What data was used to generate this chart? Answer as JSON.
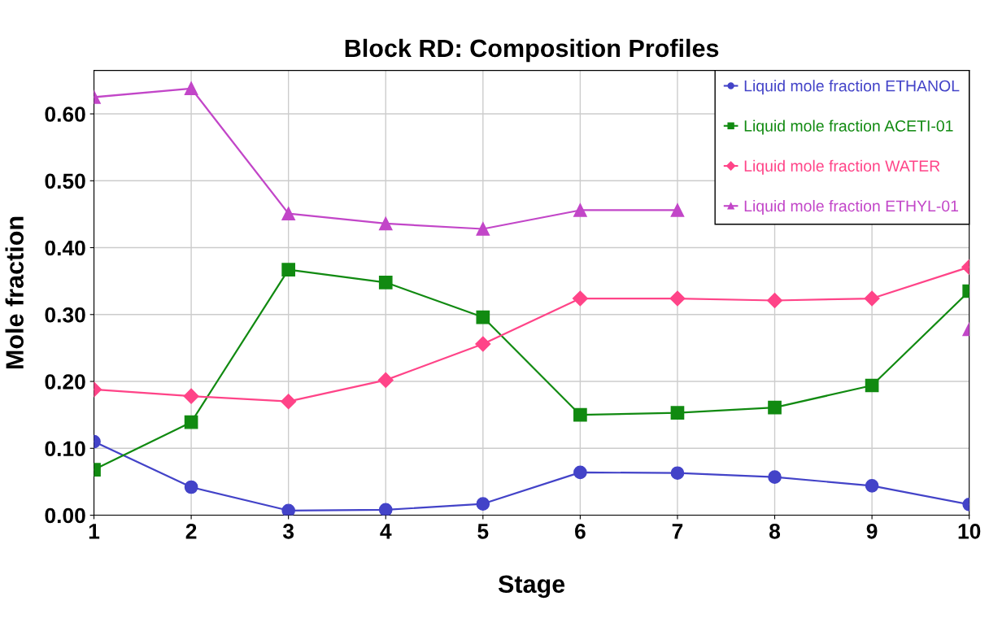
{
  "chart_data": {
    "type": "line",
    "title": "Block RD: Composition Profiles",
    "xlabel": "Stage",
    "ylabel": "Mole fraction",
    "x": [
      1,
      2,
      3,
      4,
      5,
      6,
      7,
      8,
      9,
      10
    ],
    "series": [
      {
        "name": "Liquid mole fraction ETHANOL",
        "color": "#4343c8",
        "marker": "circle",
        "values": [
          0.11,
          0.042,
          0.007,
          0.008,
          0.017,
          0.064,
          0.063,
          0.057,
          0.044,
          0.016
        ]
      },
      {
        "name": "Liquid mole fraction ACETI-01",
        "color": "#118a11",
        "marker": "square",
        "values": [
          0.068,
          0.139,
          0.367,
          0.348,
          0.296,
          0.15,
          0.153,
          0.161,
          0.194,
          0.335
        ]
      },
      {
        "name": "Liquid mole fraction WATER",
        "color": "#ff4488",
        "marker": "diamond",
        "values": [
          0.188,
          0.178,
          0.17,
          0.202,
          0.256,
          0.324,
          0.324,
          0.321,
          0.324,
          0.371
        ]
      },
      {
        "name": "Liquid mole fraction ETHYL-01",
        "color": "#c246c8",
        "marker": "triangle",
        "values": [
          0.625,
          0.638,
          0.451,
          0.436,
          0.428,
          0.456,
          0.456,
          null,
          null,
          0.278
        ]
      }
    ],
    "xlim": [
      1,
      10
    ],
    "xticks": [
      1,
      2,
      3,
      4,
      5,
      6,
      7,
      8,
      9,
      10
    ],
    "ylim": [
      0,
      0.665
    ],
    "yticks": [
      {
        "value": 0,
        "label": "0.00"
      },
      {
        "value": 0.1,
        "label": "0.10"
      },
      {
        "value": 0.2,
        "label": "0.20"
      },
      {
        "value": 0.3,
        "label": "0.30"
      },
      {
        "value": 0.4,
        "label": "0.40"
      },
      {
        "value": 0.5,
        "label": "0.50"
      },
      {
        "value": 0.6,
        "label": "0.60"
      }
    ],
    "grid": true,
    "legend": "top right",
    "line_style": "solid"
  }
}
